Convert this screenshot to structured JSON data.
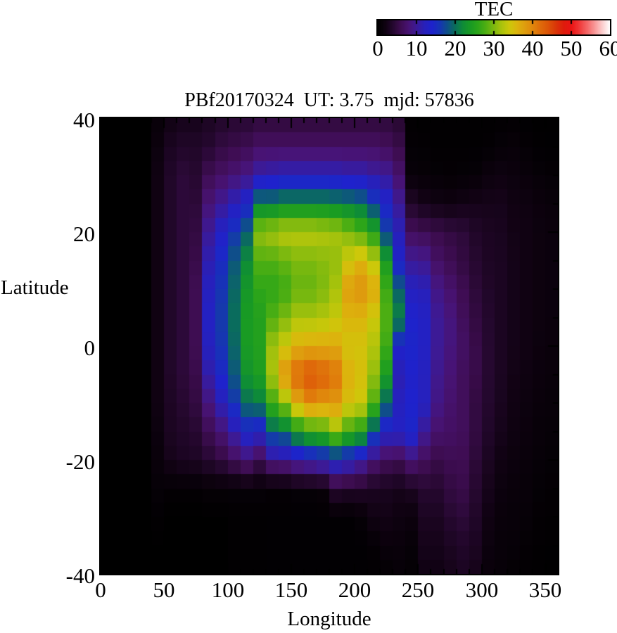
{
  "chart_data": {
    "type": "heatmap",
    "title": "PBf20170324  UT: 3.75  mjd: 57836",
    "xlabel": "Longitude",
    "ylabel": "Latitude",
    "colorbar": {
      "label": "TEC",
      "min": 0,
      "max": 60,
      "tick_values": [
        0,
        10,
        20,
        30,
        40,
        50,
        60
      ],
      "tick_labels": [
        "0",
        "10",
        "20",
        "30",
        "40",
        "50",
        "60"
      ]
    },
    "x_axis": {
      "range": [
        0,
        360
      ],
      "tick_values": [
        0,
        50,
        100,
        150,
        200,
        250,
        300,
        350
      ],
      "tick_labels": [
        "0",
        "50",
        "100",
        "150",
        "200",
        "250",
        "300",
        "350"
      ],
      "minor_tick_step": 10
    },
    "y_axis": {
      "range": [
        -40,
        40
      ],
      "tick_values": [
        40,
        20,
        0,
        -20,
        -40
      ],
      "tick_labels": [
        "40",
        "20",
        "0",
        "-20",
        "-40"
      ],
      "minor_tick_step": 5
    },
    "grid": {
      "lon_start": 0,
      "lon_step": 10,
      "n_lon": 36,
      "lat_start": 40,
      "lat_step": -5,
      "n_lat": 17
    },
    "values": [
      [
        0,
        0,
        0,
        0,
        1,
        2,
        2.5,
        2.5,
        3,
        3.5,
        4,
        4,
        4.5,
        4.5,
        4.5,
        4.5,
        4.5,
        4.5,
        4.5,
        4.5,
        4.5,
        4.5,
        4.5,
        4,
        0.3,
        0.2,
        0.2,
        0.2,
        0.2,
        0.2,
        0.2,
        0.2,
        0.3,
        0.2,
        0.1,
        0.1
      ],
      [
        0,
        0,
        0,
        0,
        1.5,
        3,
        3.5,
        3.5,
        4,
        5,
        5.5,
        6,
        7,
        7,
        7,
        7,
        7,
        7,
        7,
        7,
        7,
        7,
        6.5,
        5.5,
        0.5,
        0.4,
        0.3,
        0.3,
        0.3,
        0.3,
        0.4,
        0.8,
        1,
        0.6,
        0.3,
        0.2
      ],
      [
        0,
        0,
        0,
        0,
        2,
        3.5,
        4.5,
        4,
        6,
        7,
        8,
        9,
        11,
        11.5,
        12,
        12,
        12,
        12,
        12,
        11.5,
        11.5,
        10.5,
        10,
        7.5,
        1,
        0.8,
        0.6,
        0.5,
        0.6,
        0.8,
        1.5,
        1.8,
        1.5,
        1.2,
        0.8,
        0.6
      ],
      [
        0,
        0,
        0,
        0,
        2,
        3.5,
        4.5,
        4.5,
        8,
        10,
        12,
        14,
        21,
        21,
        22,
        22,
        22,
        22,
        21.5,
        21,
        20,
        17,
        14,
        10,
        3.5,
        2.5,
        2,
        1.8,
        2.2,
        2.5,
        2.5,
        2.5,
        2,
        1.8,
        1.4,
        1.2
      ],
      [
        0,
        0,
        0,
        0,
        2,
        3.5,
        4.5,
        5,
        10,
        13,
        16,
        19,
        31,
        32,
        33,
        33,
        33,
        32.5,
        32,
        30,
        28,
        25,
        17,
        12,
        6.5,
        6,
        5.5,
        5,
        4.5,
        3.5,
        3,
        2.8,
        2.2,
        2,
        1.6,
        1.4
      ],
      [
        0,
        0,
        0,
        0,
        2,
        3.5,
        4.5,
        5.5,
        11.5,
        15,
        18.5,
        22,
        28,
        28,
        29,
        30,
        30,
        30.5,
        31,
        34,
        36,
        33,
        24,
        13.5,
        10,
        9.5,
        7,
        6,
        5,
        4,
        3.2,
        3,
        2.4,
        2,
        1.6,
        1.4
      ],
      [
        0,
        0,
        0,
        0,
        2,
        3.5,
        4.5,
        6,
        12.5,
        16,
        19.5,
        23.5,
        26,
        26,
        27,
        29,
        29,
        30,
        32,
        38,
        39,
        37,
        27,
        19,
        12.5,
        12,
        9,
        7.5,
        6,
        4.5,
        3.5,
        3,
        2.4,
        2,
        1.6,
        1.4
      ],
      [
        0,
        0,
        0,
        0,
        2,
        3.5,
        4.5,
        6,
        13,
        16.5,
        20,
        24,
        25,
        28,
        30,
        32,
        32,
        32.5,
        33.5,
        36,
        36,
        34,
        28,
        21.5,
        14,
        13,
        10,
        8.5,
        6.5,
        5,
        3.8,
        3,
        2.4,
        2,
        1.6,
        1.4
      ],
      [
        0,
        0,
        0,
        0,
        2,
        3.5,
        4.5,
        6,
        12.5,
        16,
        19.5,
        24,
        25,
        31.5,
        34,
        36.5,
        37,
        37,
        37,
        34.5,
        34.5,
        32.5,
        27,
        14,
        14.5,
        13,
        10,
        8.5,
        7,
        5.5,
        4,
        3,
        2.4,
        2,
        1.5,
        1.3
      ],
      [
        0,
        0,
        0,
        0,
        2,
        3.5,
        4.5,
        5.5,
        11,
        14.5,
        18.5,
        23,
        24.5,
        32,
        39,
        42.5,
        44,
        43,
        41.5,
        36.5,
        35,
        31,
        24,
        11.5,
        13.5,
        12.5,
        9.5,
        8,
        6.5,
        5.5,
        4,
        3,
        2.2,
        1.8,
        1.4,
        1.2
      ],
      [
        0,
        0,
        0,
        0,
        2,
        3.2,
        4,
        5,
        8.5,
        12,
        16,
        20,
        21,
        27,
        31,
        37,
        40,
        39,
        38.5,
        35,
        34,
        28,
        19.5,
        12.5,
        14,
        12.5,
        9,
        7.5,
        6.5,
        5,
        3.8,
        2.8,
        2,
        1.6,
        1.2,
        1
      ],
      [
        0,
        0,
        0,
        0,
        1.5,
        3,
        3.5,
        4,
        6,
        8,
        11,
        14,
        13,
        19,
        20,
        24,
        26,
        27,
        31,
        27,
        25,
        18,
        13,
        13,
        14.5,
        10,
        7.5,
        7,
        6.5,
        5,
        3.5,
        2.5,
        1.8,
        1.4,
        1,
        0.8
      ],
      [
        0,
        0,
        0,
        0,
        1.2,
        2.5,
        3,
        3.2,
        4,
        5,
        6.5,
        8,
        6,
        9,
        9.5,
        11,
        12,
        13,
        14,
        13,
        11,
        8,
        6.5,
        6,
        8,
        6.5,
        5.5,
        6,
        6,
        4.5,
        3,
        2,
        1.5,
        1.2,
        0.8,
        0.6
      ],
      [
        0,
        0,
        0,
        0,
        0.8,
        0.5,
        0.5,
        0.5,
        0.8,
        0.8,
        0.8,
        0.8,
        0.8,
        0.5,
        0.5,
        0.8,
        0.8,
        1,
        4,
        3.5,
        3.5,
        3,
        2.8,
        2.5,
        3,
        4,
        4,
        5,
        5.5,
        4,
        2.5,
        1.5,
        1.2,
        1,
        0.6,
        0.4
      ],
      [
        0,
        0,
        0,
        0,
        0.3,
        0,
        0,
        0,
        0,
        0,
        0.2,
        0.2,
        0.2,
        0.3,
        0.3,
        0.3,
        0.3,
        0.3,
        0.3,
        0.3,
        0.8,
        2,
        2.2,
        1.8,
        1.5,
        3,
        3,
        4,
        4.5,
        3.5,
        2,
        1.2,
        1,
        0.8,
        0.4,
        0.3
      ],
      [
        0,
        0,
        0,
        0,
        0,
        0,
        0,
        0,
        0,
        0,
        0.2,
        0.2,
        0.2,
        0.3,
        0.3,
        0.3,
        0.3,
        0.3,
        0.3,
        0.3,
        0.3,
        0.5,
        1.2,
        1.2,
        0.8,
        2.5,
        2.5,
        3,
        3.5,
        3,
        1.5,
        1,
        0.8,
        0.5,
        0.3,
        0.2
      ],
      [
        0,
        0,
        0,
        0,
        0,
        0,
        0,
        0,
        0,
        0,
        0.2,
        0.2,
        0.2,
        0.3,
        0.3,
        0.3,
        0.3,
        0.3,
        0.3,
        0.3,
        0.3,
        0.3,
        0.4,
        0.8,
        0.5,
        2,
        2,
        2.5,
        3,
        2.5,
        1.2,
        0.8,
        0.5,
        0.3,
        0.2,
        0.1
      ]
    ],
    "colormap_stops": [
      [
        0,
        0,
        0,
        0
      ],
      [
        2,
        16,
        2,
        18
      ],
      [
        4,
        38,
        8,
        48
      ],
      [
        6,
        62,
        13,
        82
      ],
      [
        8,
        72,
        19,
        116
      ],
      [
        10,
        60,
        26,
        150
      ],
      [
        12,
        40,
        32,
        185
      ],
      [
        14,
        30,
        34,
        205
      ],
      [
        16,
        22,
        52,
        180
      ],
      [
        18,
        14,
        80,
        135
      ],
      [
        20,
        10,
        110,
        90
      ],
      [
        22,
        14,
        140,
        55
      ],
      [
        24,
        25,
        155,
        35
      ],
      [
        26,
        45,
        165,
        25
      ],
      [
        28,
        80,
        175,
        18
      ],
      [
        30,
        125,
        185,
        15
      ],
      [
        32,
        170,
        195,
        12
      ],
      [
        34,
        205,
        200,
        10
      ],
      [
        36,
        220,
        180,
        13
      ],
      [
        38,
        222,
        158,
        14
      ],
      [
        40,
        224,
        135,
        12
      ],
      [
        42,
        223,
        108,
        10
      ],
      [
        44,
        220,
        85,
        8
      ],
      [
        46,
        218,
        55,
        8
      ],
      [
        48,
        222,
        28,
        12
      ],
      [
        50,
        234,
        20,
        20
      ],
      [
        52,
        240,
        55,
        55
      ],
      [
        54,
        244,
        100,
        100
      ],
      [
        56,
        248,
        150,
        150
      ],
      [
        58,
        252,
        205,
        205
      ],
      [
        60,
        255,
        255,
        255
      ]
    ],
    "frame_color": "#000000",
    "background_color": "#ffffff"
  }
}
